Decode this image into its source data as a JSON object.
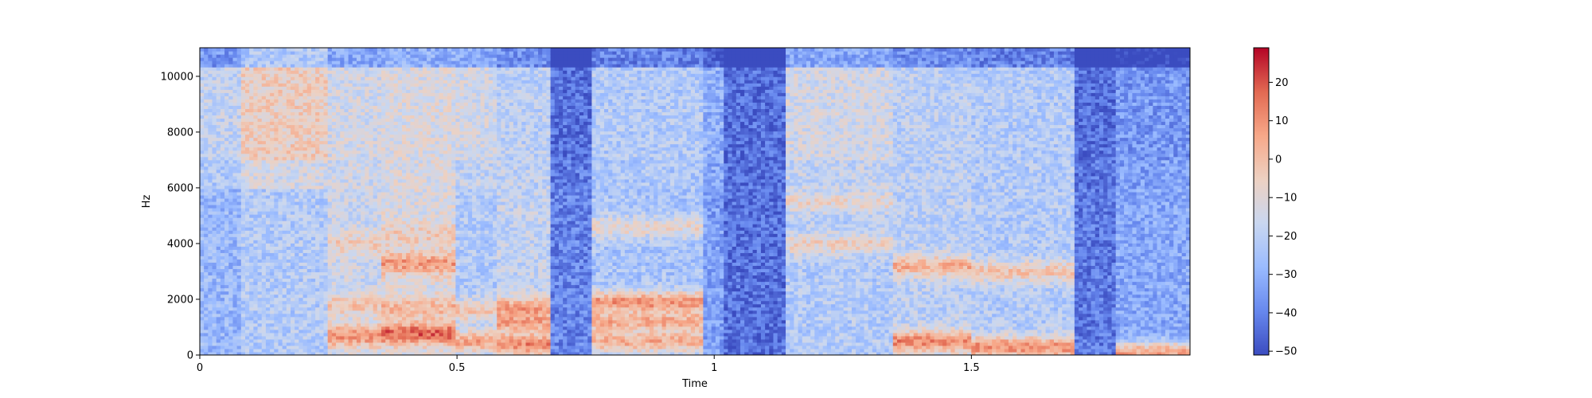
{
  "chart_data": {
    "type": "heatmap",
    "title": "",
    "xlabel": "Time",
    "ylabel": "Hz",
    "xlim": [
      0,
      1.925
    ],
    "ylim": [
      0,
      11025
    ],
    "x_ticks": [
      0,
      0.5,
      1,
      1.5
    ],
    "x_tick_labels": [
      "0",
      "0.5",
      "1",
      "1.5"
    ],
    "y_ticks": [
      0,
      2000,
      4000,
      6000,
      8000,
      10000
    ],
    "y_tick_labels": [
      "0",
      "2000",
      "4000",
      "6000",
      "8000",
      "10000"
    ],
    "grid": false,
    "colormap": "coolwarm",
    "colors": [
      "#3b4cc0",
      "#6788ee",
      "#9abbff",
      "#c9d7f0",
      "#edd1c2",
      "#f7a889",
      "#e26952",
      "#b40426"
    ],
    "colorbar": {
      "range": [
        -51,
        29
      ],
      "ticks": [
        20,
        10,
        0,
        -10,
        -20,
        -30,
        -40,
        -50
      ],
      "tick_labels": [
        "20",
        "10",
        "0",
        "−10",
        "−20",
        "−30",
        "−40",
        "−50"
      ]
    },
    "segments": [
      {
        "t0": 0.0,
        "t1": 0.08,
        "level": -28,
        "hf": -18,
        "formants": []
      },
      {
        "t0": 0.08,
        "t1": 0.25,
        "level": -22,
        "hf": -5,
        "formants": []
      },
      {
        "t0": 0.25,
        "t1": 0.35,
        "level": -16,
        "hf": -14,
        "formants": [
          [
            700,
            10
          ],
          [
            1800,
            -2
          ],
          [
            4000,
            -4
          ]
        ]
      },
      {
        "t0": 0.35,
        "t1": 0.5,
        "level": -12,
        "hf": -12,
        "formants": [
          [
            800,
            18
          ],
          [
            1700,
            2
          ],
          [
            3300,
            8
          ],
          [
            4300,
            -4
          ]
        ]
      },
      {
        "t0": 0.5,
        "t1": 0.58,
        "level": -22,
        "hf": -14,
        "formants": [
          [
            500,
            6
          ],
          [
            1600,
            -2
          ]
        ]
      },
      {
        "t0": 0.58,
        "t1": 0.68,
        "level": -18,
        "hf": -20,
        "formants": [
          [
            400,
            12
          ],
          [
            1200,
            6
          ],
          [
            1700,
            8
          ]
        ]
      },
      {
        "t0": 0.68,
        "t1": 0.76,
        "level": -40,
        "hf": -44,
        "formants": []
      },
      {
        "t0": 0.76,
        "t1": 0.98,
        "level": -24,
        "hf": -22,
        "formants": [
          [
            500,
            4
          ],
          [
            1200,
            4
          ],
          [
            1900,
            10
          ],
          [
            4600,
            -8
          ]
        ]
      },
      {
        "t0": 0.98,
        "t1": 1.02,
        "level": -34,
        "hf": -30,
        "formants": []
      },
      {
        "t0": 1.02,
        "t1": 1.14,
        "level": -44,
        "hf": -44,
        "formants": []
      },
      {
        "t0": 1.14,
        "t1": 1.35,
        "level": -22,
        "hf": -14,
        "formants": [
          [
            4000,
            -6
          ],
          [
            5500,
            -8
          ]
        ]
      },
      {
        "t0": 1.35,
        "t1": 1.5,
        "level": -20,
        "hf": -20,
        "formants": [
          [
            500,
            12
          ],
          [
            3200,
            4
          ]
        ]
      },
      {
        "t0": 1.5,
        "t1": 1.7,
        "level": -22,
        "hf": -22,
        "formants": [
          [
            300,
            10
          ],
          [
            3000,
            -2
          ]
        ]
      },
      {
        "t0": 1.7,
        "t1": 1.78,
        "level": -42,
        "hf": -44,
        "formants": []
      },
      {
        "t0": 1.78,
        "t1": 1.925,
        "level": -32,
        "hf": -36,
        "formants": [
          [
            100,
            6
          ]
        ]
      }
    ]
  }
}
